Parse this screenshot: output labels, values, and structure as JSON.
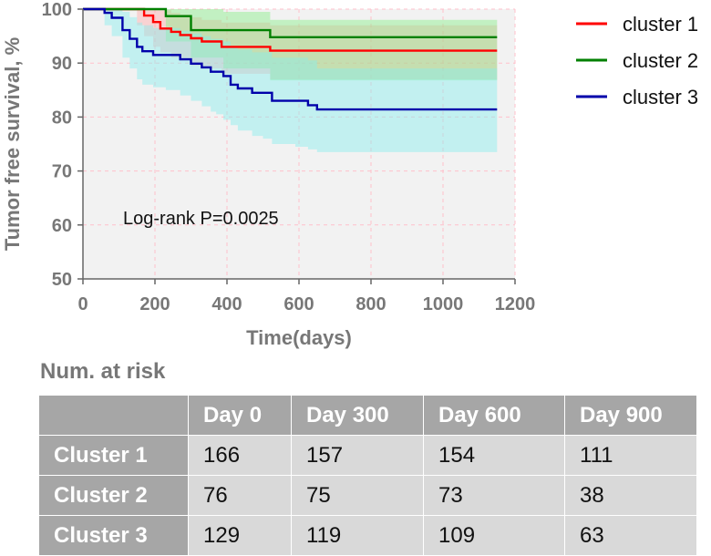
{
  "chart_data": {
    "type": "line",
    "subtype": "kaplan-meier",
    "title": "",
    "xlabel": "Time(days)",
    "ylabel": "Tumor free survival, %",
    "xlim": [
      0,
      1200
    ],
    "ylim": [
      50,
      100
    ],
    "xticks": [
      0,
      200,
      400,
      600,
      800,
      1000,
      1200
    ],
    "yticks": [
      50,
      60,
      70,
      80,
      90,
      100
    ],
    "grid": true,
    "legend_position": "top-right",
    "annotation": "Log-rank P=0.0025",
    "series": [
      {
        "name": "cluster 1",
        "color": "#ff0000",
        "band_color": "#ffaaaa",
        "x": [
          0,
          150,
          170,
          195,
          215,
          245,
          270,
          300,
          330,
          385,
          520,
          1150
        ],
        "y": [
          100,
          100,
          98.8,
          97.6,
          96.4,
          95.8,
          95.2,
          94.6,
          94.0,
          93.0,
          92.3,
          92.3
        ],
        "lower": [
          100,
          97,
          95,
          93,
          92,
          91,
          90.5,
          89.5,
          89,
          88,
          87,
          87
        ],
        "upper": [
          100,
          100,
          100,
          100,
          99.8,
          99.3,
          99,
          98.5,
          98,
          97.5,
          97,
          97
        ]
      },
      {
        "name": "cluster 2",
        "color": "#008000",
        "band_color": "#88ee88",
        "x": [
          0,
          225,
          230,
          300,
          390,
          520,
          1150
        ],
        "y": [
          100,
          100,
          98.7,
          96.1,
          96.1,
          94.8,
          94.8
        ],
        "lower": [
          100,
          100,
          94,
          91,
          89,
          86.8,
          86.8
        ],
        "upper": [
          100,
          100,
          100,
          100,
          99.5,
          98,
          98
        ]
      },
      {
        "name": "cluster 3",
        "color": "#0000aa",
        "band_color": "#88eeee",
        "x": [
          0,
          60,
          80,
          110,
          130,
          150,
          165,
          195,
          230,
          270,
          300,
          330,
          355,
          370,
          390,
          410,
          430,
          470,
          500,
          525,
          590,
          625,
          650,
          1150
        ],
        "y": [
          100,
          99.3,
          98.4,
          96.1,
          94.5,
          93.0,
          92.2,
          91.5,
          91.5,
          90.7,
          89.9,
          89.2,
          88.4,
          88.4,
          87.6,
          86.0,
          85.3,
          84.5,
          84.5,
          83.0,
          83.0,
          82.2,
          81.4,
          81.4
        ],
        "lower": [
          100,
          97,
          95,
          91,
          89,
          87,
          86,
          85.5,
          85,
          84,
          83,
          82,
          81,
          80.5,
          79.5,
          78.5,
          77.5,
          76.5,
          76,
          75,
          74.5,
          74,
          73.5,
          73.5
        ],
        "upper": [
          100,
          100,
          100,
          99.5,
          98.5,
          97.5,
          97,
          96.5,
          96.5,
          96,
          95.5,
          95,
          94.5,
          94.5,
          94,
          93,
          92.5,
          92,
          92,
          91,
          91,
          90.5,
          89,
          89
        ]
      }
    ]
  },
  "risk_table": {
    "title": "Num. at risk",
    "columns": [
      "",
      "Day 0",
      "Day 300",
      "Day 600",
      "Day 900"
    ],
    "rows": [
      {
        "label": "Cluster 1",
        "values": [
          "166",
          "157",
          "154",
          "111"
        ]
      },
      {
        "label": "Cluster 2",
        "values": [
          "76",
          "75",
          "73",
          "38"
        ]
      },
      {
        "label": "Cluster 3",
        "values": [
          "129",
          "119",
          "109",
          "63"
        ]
      }
    ]
  },
  "colors": {
    "plot_background": "#f2f2f2",
    "grid": "#ffc0cb",
    "table_header": "#a6a6a6",
    "table_cell": "#d9d9d9"
  }
}
